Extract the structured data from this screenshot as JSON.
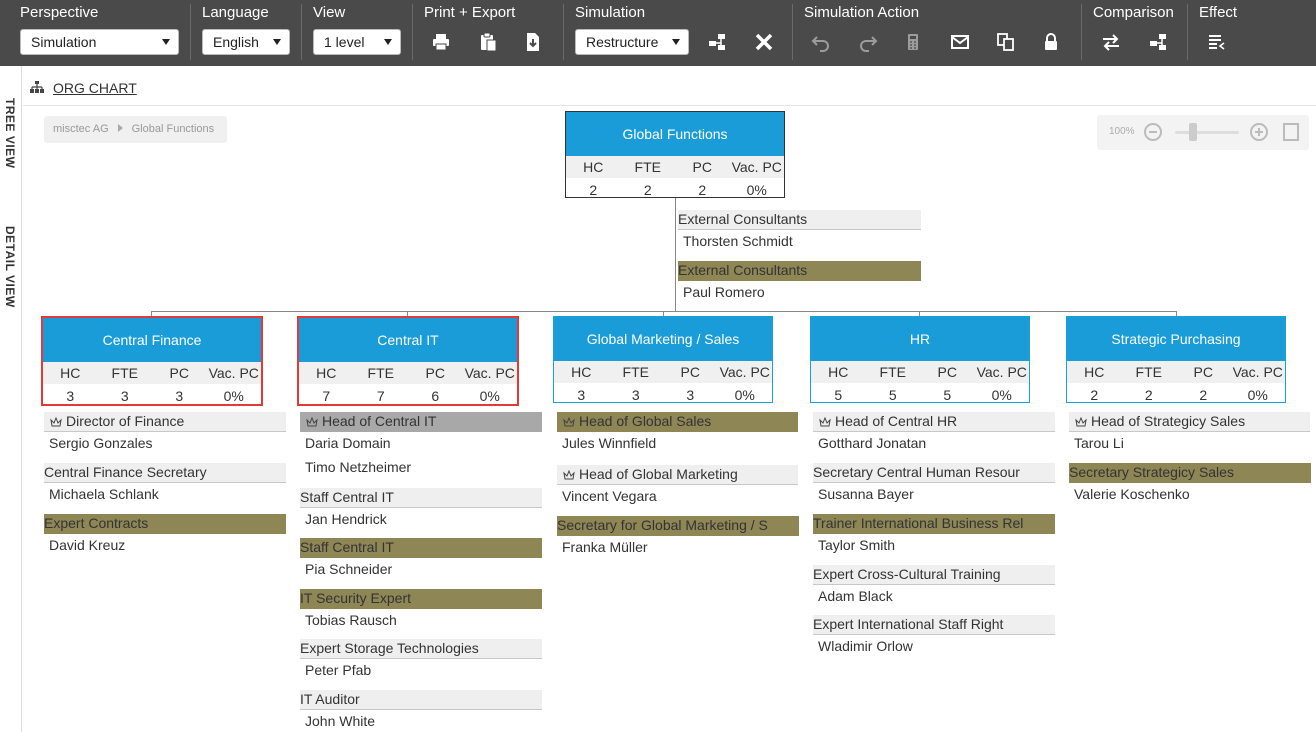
{
  "toolbar": {
    "perspective": {
      "title": "Perspective",
      "value": "Simulation"
    },
    "language": {
      "title": "Language",
      "value": "English"
    },
    "view": {
      "title": "View",
      "value": "1 level"
    },
    "print_export": {
      "title": "Print + Export"
    },
    "simulation": {
      "title": "Simulation",
      "value": "Restructure"
    },
    "simulation_action": {
      "title": "Simulation Action"
    },
    "comparison": {
      "title": "Comparison"
    },
    "effect": {
      "title": "Effect"
    }
  },
  "side_tabs": {
    "tree": "TREE VIEW",
    "detail": "DETAIL VIEW"
  },
  "header": {
    "title": "ORG CHART"
  },
  "breadcrumb": [
    "misctec AG",
    "Global Functions"
  ],
  "zoom": {
    "level": "100%"
  },
  "stat_labels": [
    "HC",
    "FTE",
    "PC",
    "Vac. PC"
  ],
  "root": {
    "name": "Global Functions",
    "stats": [
      "2",
      "2",
      "2",
      "0%"
    ],
    "staff": [
      {
        "title": "External Consultants",
        "person": "Thorsten Schmidt"
      },
      {
        "title": "External Consultants",
        "person": "Paul Romero"
      }
    ]
  },
  "units": [
    {
      "name": "Central Finance",
      "stats": [
        "3",
        "3",
        "3",
        "0%"
      ],
      "positions": [
        {
          "title": "Director of Finance",
          "persons": [
            "Sergio Gonzales"
          ]
        },
        {
          "title": "Central Finance Secretary",
          "persons": [
            "Michaela Schlank"
          ]
        },
        {
          "title": "Expert Contracts",
          "persons": [
            "David Kreuz"
          ]
        }
      ]
    },
    {
      "name": "Central IT",
      "stats": [
        "7",
        "7",
        "6",
        "0%"
      ],
      "positions": [
        {
          "title": "Head of Central IT",
          "persons": [
            "Daria Domain",
            "Timo Netzheimer"
          ]
        },
        {
          "title": "Staff Central IT",
          "persons": [
            "Jan Hendrick"
          ]
        },
        {
          "title": "Staff Central IT",
          "persons": [
            "Pia Schneider"
          ]
        },
        {
          "title": "IT Security Expert",
          "persons": [
            "Tobias Rausch"
          ]
        },
        {
          "title": "Expert Storage Technologies",
          "persons": [
            "Peter Pfab"
          ]
        },
        {
          "title": "IT Auditor",
          "persons": [
            "John White"
          ]
        }
      ]
    },
    {
      "name": "Global Marketing / Sales",
      "stats": [
        "3",
        "3",
        "3",
        "0%"
      ],
      "positions": [
        {
          "title": "Head of Global Sales",
          "persons": [
            "Jules Winnfield"
          ]
        },
        {
          "title": "Head of Global Marketing",
          "persons": [
            "Vincent Vegara"
          ]
        },
        {
          "title": "Secretary for Global Marketing / S",
          "persons": [
            "Franka Müller"
          ]
        }
      ]
    },
    {
      "name": "HR",
      "stats": [
        "5",
        "5",
        "5",
        "0%"
      ],
      "positions": [
        {
          "title": "Head of Central HR",
          "persons": [
            "Gotthard Jonatan"
          ]
        },
        {
          "title": "Secretary Central Human Resour",
          "persons": [
            "Susanna Bayer"
          ]
        },
        {
          "title": "Trainer International Business Rel",
          "persons": [
            "Taylor Smith"
          ]
        },
        {
          "title": "Expert Cross-Cultural Training",
          "persons": [
            "Adam Black"
          ]
        },
        {
          "title": "Expert International Staff Right",
          "persons": [
            "Wladimir Orlow"
          ]
        }
      ]
    },
    {
      "name": "Strategic Purchasing",
      "stats": [
        "2",
        "2",
        "2",
        "0%"
      ],
      "positions": [
        {
          "title": "Head of Strategicy Sales",
          "persons": [
            "Tarou Li"
          ]
        },
        {
          "title": "Secretary Strategicy Sales",
          "persons": [
            "Valerie Koschenko"
          ]
        }
      ]
    }
  ],
  "colors": {
    "toolbar": "#4a4a4a",
    "unit_header": "#1a9cd8",
    "vacant_highlight": "#8f8656",
    "selected_border": "#e53935"
  }
}
